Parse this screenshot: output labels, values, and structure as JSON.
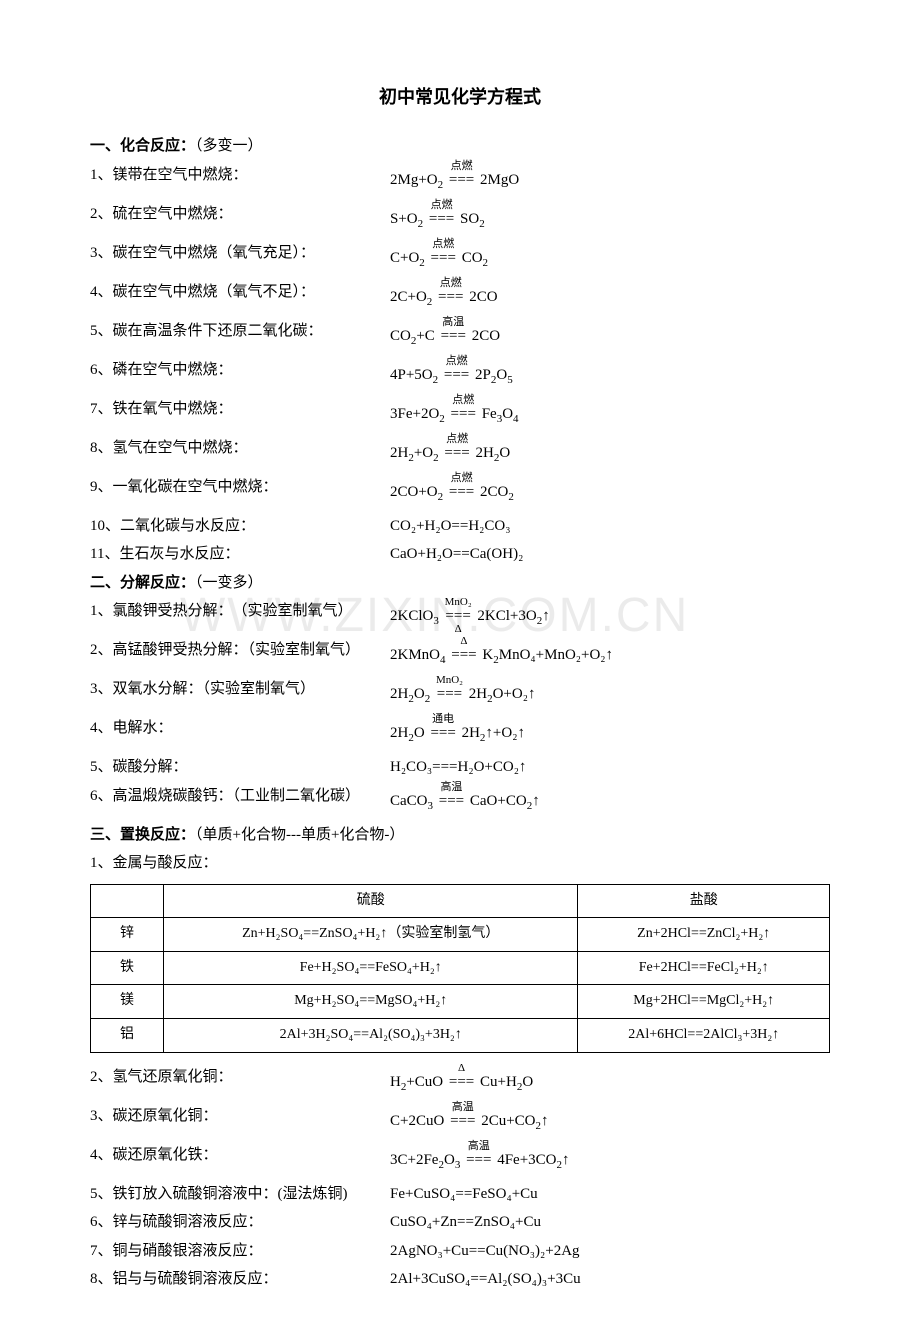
{
  "title": "初中常见化学方程式",
  "watermark": "WWW.ZIXIN.COM.CN",
  "sections": {
    "s1": {
      "head": "一、化合反应：",
      "note": "（多变一）",
      "items": [
        {
          "n": "1、",
          "desc": "镁带在空气中燃烧：",
          "lhs": "2Mg+O",
          "lsub": "2",
          "top": "点燃",
          "bot": "",
          "rhs": " 2MgO"
        },
        {
          "n": "2、",
          "desc": "硫在空气中燃烧：",
          "lhs": "S+O",
          "lsub": "2",
          "top": "点燃",
          "bot": "",
          "rhs": " SO",
          "rsub": "2"
        },
        {
          "n": "3、",
          "desc": "碳在空气中燃烧（氧气充足）：",
          "lhs": "C+O",
          "lsub": "2",
          "top": "点燃",
          "bot": "",
          "rhs": " CO",
          "rsub": "2"
        },
        {
          "n": "4、",
          "desc": "碳在空气中燃烧（氧气不足）：",
          "lhs": "2C+O",
          "lsub": "2",
          "top": "点燃",
          "bot": "",
          "rhs": " 2CO"
        },
        {
          "n": "5、",
          "desc": "碳在高温条件下还原二氧化碳：",
          "lhs": "CO",
          "lsub": "2",
          "mid": "+C ",
          "top": "高温",
          "bot": "",
          "rhs": " 2CO"
        },
        {
          "n": "6、",
          "desc": "磷在空气中燃烧：",
          "lhs": "4P+5O",
          "lsub": "2",
          "top": "点燃",
          "bot": "",
          "rhs": " 2P",
          "rsub": "2",
          "tail": "O",
          "tsub": "5"
        },
        {
          "n": "7、",
          "desc": "铁在氧气中燃烧：",
          "lhs": "3Fe+2O",
          "lsub": "2",
          "top": "点燃",
          "bot": "",
          "rhs": " Fe",
          "rsub": "3",
          "tail": "O",
          "tsub": "4"
        },
        {
          "n": "8、",
          "desc": "氢气在空气中燃烧：",
          "lhs": "2H",
          "lsub": "2",
          "mid": "+O",
          "msub": "2",
          "top": "点燃",
          "bot": "",
          "rhs": " 2H",
          "rsub": "2",
          "tail": "O"
        },
        {
          "n": "9、",
          "desc": "一氧化碳在空气中燃烧：",
          "lhs": "2CO+O",
          "lsub": "2",
          "top": "点燃",
          "bot": "",
          "rhs": " 2CO",
          "rsub": "2"
        },
        {
          "n": "10、",
          "desc": "二氧化碳与水反应：",
          "plain": "CO₂+H₂O==H₂CO₃"
        },
        {
          "n": "11、",
          "desc": "生石灰与水反应：",
          "plain": "CaO+H₂O==Ca(OH)₂"
        }
      ]
    },
    "s2": {
      "head": "二、分解反应：",
      "note": "（一变多）",
      "items": [
        {
          "n": "1、",
          "desc": "氯酸钾受热分解：　（实验室制氧气）",
          "lhs": "2KClO",
          "lsub": "3",
          "top": "MnO₂",
          "bot": "Δ",
          "rhs": " 2KCl+3O",
          "rsub": "2",
          "arrow": "↑"
        },
        {
          "n": "2、",
          "desc": "高锰酸钾受热分解：（实验室制氧气）",
          "lhs": "2KMnO",
          "lsub": "4",
          "top": "Δ",
          "bot": "",
          "rhs": " K",
          "rsub": "2",
          "tail": "MnO₄+MnO₂+O₂↑"
        },
        {
          "n": "3、",
          "desc": "双氧水分解：（实验室制氧气）",
          "lhs": "2H",
          "lsub": "2",
          "mid": "O",
          "msub": "2",
          "top": "MnO₂",
          "bot": "",
          "rhs": " 2H",
          "rsub": "2",
          "tail": "O+O₂↑"
        },
        {
          "n": "4、",
          "desc": "电解水：",
          "lhs": "2H",
          "lsub": "2",
          "mid": "O ",
          "top": "通电",
          "bot": "",
          "rhs": " 2H",
          "rsub": "2",
          "tail": "↑+O₂↑"
        },
        {
          "n": "5、",
          "desc": "碳酸分解：",
          "plain": "H₂CO₃===H₂O+CO₂↑"
        },
        {
          "n": "6、",
          "desc": "高温煅烧碳酸钙：（工业制二氧化碳）",
          "lhs": "CaCO",
          "lsub": "3",
          "top": "高温",
          "bot": "",
          "rhs": " CaO+CO",
          "rsub": "2",
          "arrow": "↑"
        }
      ]
    },
    "s3": {
      "head": "三、置换反应：",
      "note": "（单质+化合物---单质+化合物-）",
      "sub1": "1、金属与酸反应：",
      "table": {
        "headers": [
          "",
          "硫酸",
          "盐酸"
        ],
        "rows": [
          [
            "锌",
            "Zn+H₂SO₄==ZnSO₄+H₂↑（实验室制氢气）",
            "Zn+2HCl==ZnCl₂+H₂↑"
          ],
          [
            "铁",
            "Fe+H₂SO₄==FeSO₄+H₂↑",
            "Fe+2HCl==FeCl₂+H₂↑"
          ],
          [
            "镁",
            "Mg+H₂SO₄==MgSO₄+H₂↑",
            "Mg+2HCl==MgCl₂+H₂↑"
          ],
          [
            "铝",
            "2Al+3H₂SO₄==Al₂(SO₄)₃+3H₂↑",
            "2Al+6HCl==2AlCl₃+3H₂↑"
          ]
        ]
      },
      "items": [
        {
          "n": "2、",
          "desc": "氢气还原氧化铜：",
          "lhs": "H",
          "lsub": "2",
          "mid": "+CuO ",
          "top": "Δ",
          "bot": "",
          "rhs": " Cu+H",
          "rsub": "2",
          "tail": "O"
        },
        {
          "n": "3、",
          "desc": "碳还原氧化铜：",
          "lhs": "C+2CuO ",
          "top": "高温",
          "bot": "",
          "rhs": " 2Cu+CO",
          "rsub": "2",
          "arrow": "↑"
        },
        {
          "n": "4、",
          "desc": "碳还原氧化铁：",
          "lhs": "3C+2Fe",
          "lsub": "2",
          "mid": "O",
          "msub": "3",
          "top": "高温",
          "bot": "",
          "rhs": " 4Fe+3CO",
          "rsub": "2",
          "arrow": "↑"
        },
        {
          "n": "5、",
          "desc": "铁钉放入硫酸铜溶液中：(湿法炼铜)",
          "plain": "Fe+CuSO₄==FeSO₄+Cu"
        },
        {
          "n": "6、",
          "desc": "锌与硫酸铜溶液反应：",
          "plain": "CuSO₄+Zn==ZnSO₄+Cu"
        },
        {
          "n": "7、",
          "desc": "铜与硝酸银溶液反应：",
          "plain": "2AgNO₃+Cu==Cu(NO₃)₂+2Ag"
        },
        {
          "n": "8、",
          "desc": "铝与与硫酸铜溶液反应：",
          "plain": "2Al+3CuSO₄==Al₂(SO₄)₃+3Cu"
        }
      ]
    }
  }
}
